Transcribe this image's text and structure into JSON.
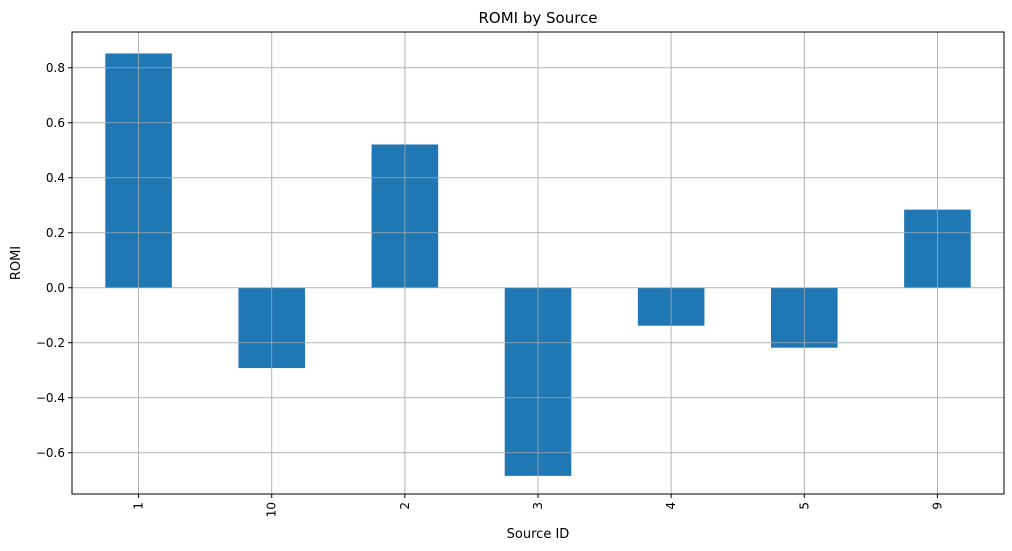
{
  "chart_data": {
    "type": "bar",
    "title": "ROMI by Source",
    "xlabel": "Source ID",
    "ylabel": "ROMI",
    "categories": [
      "1",
      "10",
      "2",
      "3",
      "4",
      "5",
      "9"
    ],
    "values": [
      0.852,
      -0.292,
      0.521,
      -0.684,
      -0.138,
      -0.218,
      0.284
    ],
    "ylim": [
      -0.75,
      0.93
    ],
    "yticks": [
      0.8,
      0.6,
      0.4,
      0.2,
      0.0,
      -0.2,
      -0.4,
      -0.6
    ],
    "ytick_labels": [
      "0.8",
      "0.6",
      "0.4",
      "0.2",
      "0.0",
      "−0.2",
      "−0.4",
      "−0.6"
    ],
    "grid": true,
    "xtick_rotation": "vertical",
    "colors": {
      "bar": "#1f77b4",
      "grid": "#b0b0b0",
      "axis": "#000000"
    }
  }
}
